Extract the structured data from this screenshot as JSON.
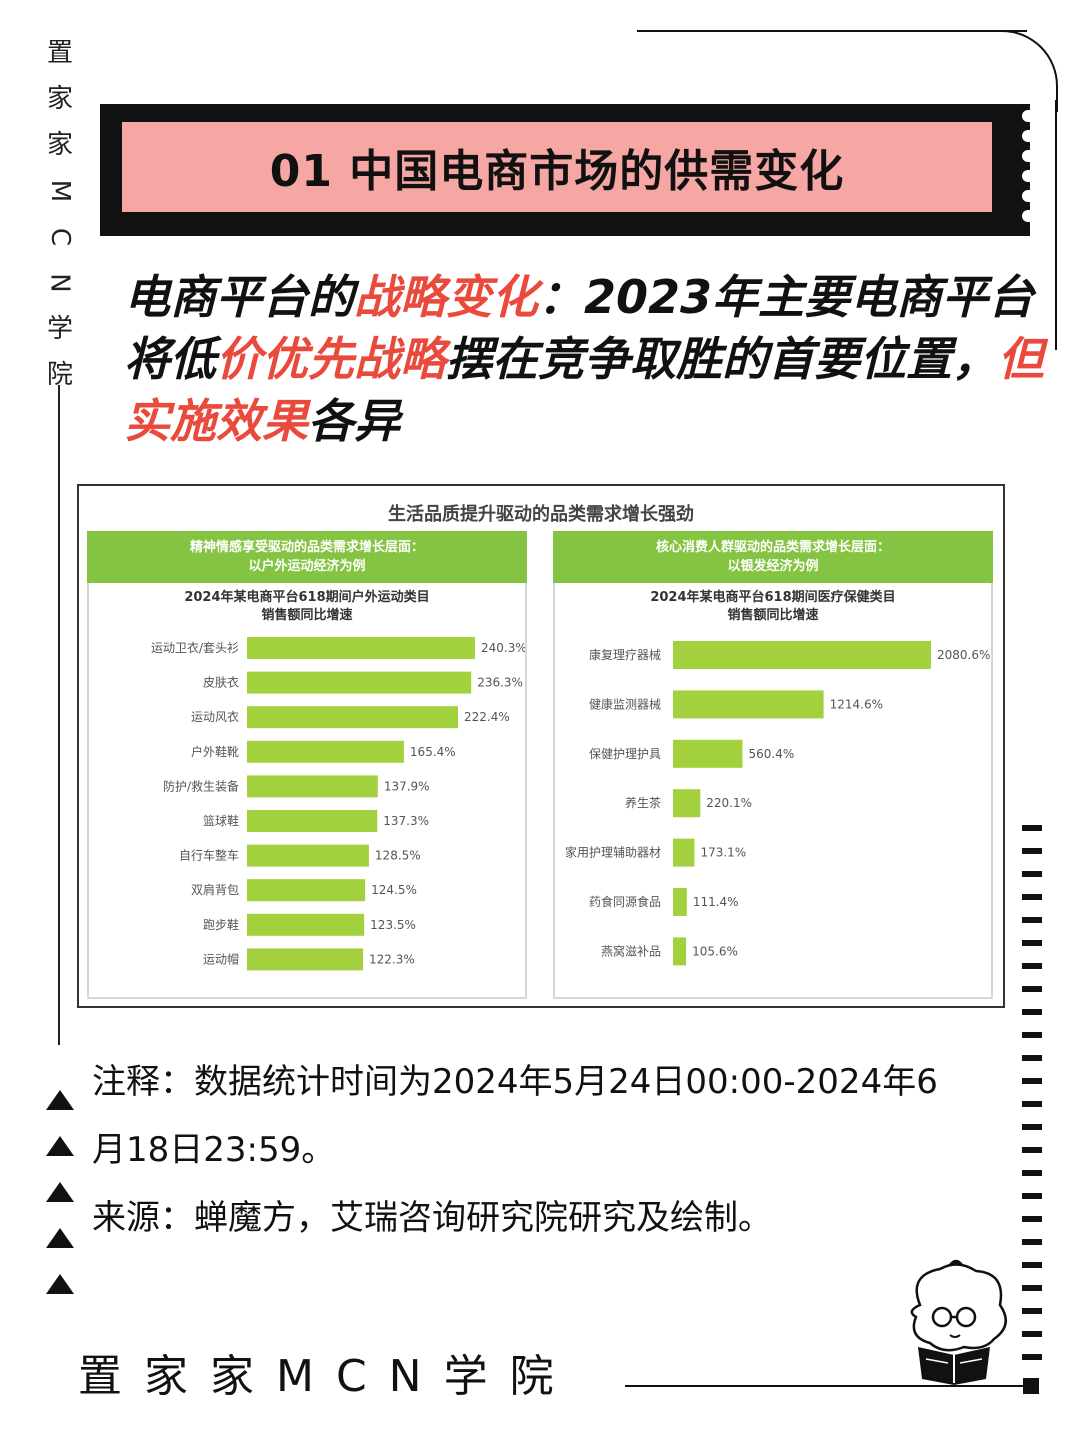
{
  "brand_vertical": [
    "置",
    "家",
    "家",
    "M",
    "C",
    "N",
    "学",
    "院"
  ],
  "title": "01 中国电商市场的供需变化",
  "headline": {
    "p1": "电商平台的",
    "h1": "战略变化",
    "p2": "：2023年主要电商平台将低",
    "h2": "价优先战略",
    "p3": "摆在竞争取胜的首要位置，",
    "h3": "但实施效果",
    "p4": "各异"
  },
  "chart_data": [
    {
      "type": "bar",
      "orientation": "horizontal",
      "title": "生活品质提升驱动的品类需求增长强劲",
      "panel_header": [
        "精神情感享受驱动的品类需求增长层面：",
        "以户外运动经济为例"
      ],
      "subtitle": [
        "2024年某电商平台618期间户外运动类目",
        "销售额同比增速"
      ],
      "categories": [
        "运动卫衣/套头衫",
        "皮肤衣",
        "运动风衣",
        "户外鞋靴",
        "防护/救生装备",
        "篮球鞋",
        "自行车整车",
        "双肩背包",
        "跑步鞋",
        "运动帽"
      ],
      "values": [
        240.3,
        236.3,
        222.4,
        165.4,
        137.9,
        137.3,
        128.5,
        124.5,
        123.5,
        122.3
      ],
      "unit": "%",
      "color": "#a3d13e"
    },
    {
      "type": "bar",
      "orientation": "horizontal",
      "panel_header": [
        "核心消费人群驱动的品类需求增长层面：",
        "以银发经济为例"
      ],
      "subtitle": [
        "2024年某电商平台618期间医疗保健类目",
        "销售额同比增速"
      ],
      "categories": [
        "康复理疗器械",
        "健康监测器械",
        "保健护理护具",
        "养生茶",
        "家用护理辅助器材",
        "药食同源食品",
        "燕窝滋补品"
      ],
      "values": [
        2080.6,
        1214.6,
        560.4,
        220.1,
        173.1,
        111.4,
        105.6
      ],
      "unit": "%",
      "color": "#a3d13e"
    }
  ],
  "notes": {
    "line1": "注释：数据统计时间为2024年5月24日00:00-2024年6",
    "line2": "月18日23:59。",
    "line3": "来源：蝉魔方，艾瑞咨询研究院研究及绘制。"
  },
  "bottom_brand": "置家家MCN学院",
  "icons": {
    "triangles": "triangle-up-icon",
    "mascot": "reading-character-icon"
  }
}
